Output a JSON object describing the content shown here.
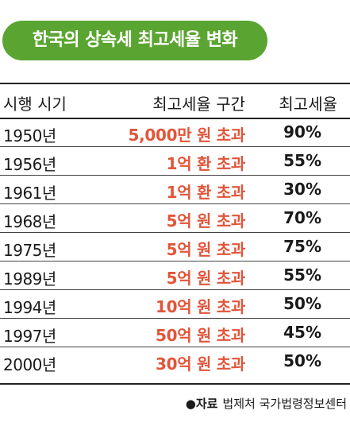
{
  "title": "한국의 상속세 최고세율 변화",
  "columns": {
    "period": "시행 시기",
    "bracket": "최고세율 구간",
    "rate": "최고세율"
  },
  "rows": [
    {
      "year": "1950년",
      "bracket": "5,000만 원 초과",
      "rate": "90%"
    },
    {
      "year": "1956년",
      "bracket": "1억 환 초과",
      "rate": "55%"
    },
    {
      "year": "1961년",
      "bracket": "1억 환 초과",
      "rate": "30%"
    },
    {
      "year": "1968년",
      "bracket": "5억 원 초과",
      "rate": "70%"
    },
    {
      "year": "1975년",
      "bracket": "5억 원 초과",
      "rate": "75%"
    },
    {
      "year": "1989년",
      "bracket": "5억 원 초과",
      "rate": "55%"
    },
    {
      "year": "1994년",
      "bracket": "10억 원 초과",
      "rate": "50%"
    },
    {
      "year": "1997년",
      "bracket": "50억 원 초과",
      "rate": "45%"
    },
    {
      "year": "2000년",
      "bracket": "30억 원 초과",
      "rate": "50%"
    }
  ],
  "source": {
    "bullet": "●",
    "label": "자료",
    "text": "법제처 국가법령정보센터"
  },
  "colors": {
    "title_bg": "#5aa531",
    "bracket_text": "#e2553a"
  }
}
